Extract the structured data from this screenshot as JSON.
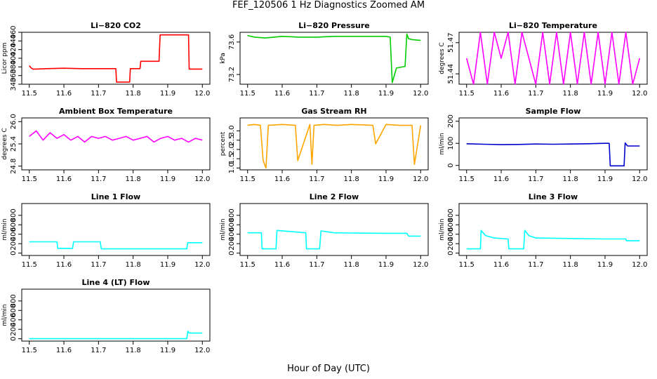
{
  "figure": {
    "title": "FEF_120506  1 Hz Diagnostics Zoomed AM",
    "xlabel": "Hour of Day (UTC)"
  },
  "chart_data": [
    {
      "type": "line",
      "title": "Li−820 CO2",
      "ylabel": "Licor ppm",
      "color": "#ff0000",
      "xlim": [
        11.5,
        12.0
      ],
      "ylim": [
        340,
        460
      ],
      "xticks": [
        "11.5",
        "11.6",
        "11.7",
        "11.8",
        "11.9",
        "12.0"
      ],
      "yticks": [
        "340",
        "360",
        "380",
        "400",
        "420",
        "440",
        "460"
      ],
      "x": [
        11.5,
        11.505,
        11.51,
        11.52,
        11.55,
        11.6,
        11.65,
        11.7,
        11.75,
        11.752,
        11.79,
        11.792,
        11.82,
        11.822,
        11.875,
        11.878,
        11.96,
        11.962,
        12.0
      ],
      "y": [
        383,
        378,
        375,
        375,
        376,
        377,
        376,
        376,
        376,
        345,
        345,
        376,
        376,
        393,
        393,
        454,
        454,
        375,
        375
      ]
    },
    {
      "type": "line",
      "title": "Li−820 Pressure",
      "ylabel": "kPa",
      "color": "#00cc00",
      "xlim": [
        11.5,
        12.0
      ],
      "ylim": [
        73.08,
        73.72
      ],
      "xticks": [
        "11.5",
        "11.6",
        "11.7",
        "11.8",
        "11.9",
        "12.0"
      ],
      "yticks": [
        "73.2",
        "73.6"
      ],
      "x": [
        11.5,
        11.52,
        11.55,
        11.6,
        11.65,
        11.7,
        11.75,
        11.8,
        11.85,
        11.9,
        11.912,
        11.918,
        11.93,
        11.955,
        11.96,
        11.965,
        11.975,
        12.0
      ],
      "y": [
        73.68,
        73.66,
        73.65,
        73.67,
        73.66,
        73.66,
        73.67,
        73.67,
        73.67,
        73.67,
        73.66,
        73.1,
        73.28,
        73.3,
        73.7,
        73.64,
        73.63,
        73.62
      ]
    },
    {
      "type": "line",
      "title": "Li−820 Temperature",
      "ylabel": "degrees C",
      "color": "#ff00ff",
      "xlim": [
        11.5,
        12.0
      ],
      "ylim": [
        51.43,
        51.48
      ],
      "xticks": [
        "11.5",
        "11.6",
        "11.7",
        "11.8",
        "11.9",
        "12.0"
      ],
      "yticks": [
        "51.44",
        "51.47"
      ],
      "x": [
        11.5,
        11.52,
        11.54,
        11.56,
        11.58,
        11.6,
        11.62,
        11.64,
        11.66,
        11.68,
        11.7,
        11.72,
        11.74,
        11.76,
        11.78,
        11.8,
        11.82,
        11.84,
        11.86,
        11.88,
        11.9,
        11.92,
        11.94,
        11.96,
        11.98,
        12.0
      ],
      "y": [
        51.455,
        51.43,
        51.48,
        51.43,
        51.48,
        51.455,
        51.48,
        51.43,
        51.48,
        51.455,
        51.43,
        51.48,
        51.43,
        51.48,
        51.43,
        51.48,
        51.43,
        51.48,
        51.43,
        51.48,
        51.43,
        51.48,
        51.43,
        51.48,
        51.43,
        51.455
      ]
    },
    {
      "type": "line",
      "title": "Ambient Box Temperature",
      "ylabel": "degrees C",
      "color": "#ff00ff",
      "xlim": [
        11.5,
        12.0
      ],
      "ylim": [
        24.7,
        26.1
      ],
      "xticks": [
        "11.5",
        "11.6",
        "11.7",
        "11.8",
        "11.9",
        "12.0"
      ],
      "yticks": [
        "24.8",
        "25.4",
        "26.0"
      ],
      "x": [
        11.5,
        11.52,
        11.54,
        11.56,
        11.58,
        11.6,
        11.62,
        11.64,
        11.66,
        11.68,
        11.7,
        11.72,
        11.74,
        11.76,
        11.78,
        11.8,
        11.82,
        11.84,
        11.86,
        11.88,
        11.9,
        11.92,
        11.94,
        11.96,
        11.98,
        12.0
      ],
      "y": [
        25.6,
        25.75,
        25.5,
        25.7,
        25.55,
        25.65,
        25.5,
        25.6,
        25.45,
        25.6,
        25.55,
        25.6,
        25.5,
        25.55,
        25.6,
        25.5,
        25.55,
        25.6,
        25.45,
        25.55,
        25.6,
        25.5,
        25.55,
        25.45,
        25.55,
        25.5
      ]
    },
    {
      "type": "line",
      "title": "Gas Stream RH",
      "ylabel": "percent",
      "color": "#ffa500",
      "xlim": [
        11.5,
        12.0
      ],
      "ylim": [
        0.9,
        3.7
      ],
      "xticks": [
        "11.5",
        "11.6",
        "11.7",
        "11.8",
        "11.9",
        "12.0"
      ],
      "yticks": [
        "1.0",
        "1.5",
        "2.0",
        "2.5",
        "3.0"
      ],
      "x": [
        11.5,
        11.52,
        11.537,
        11.545,
        11.553,
        11.56,
        11.6,
        11.638,
        11.645,
        11.68,
        11.686,
        11.692,
        11.72,
        11.76,
        11.8,
        11.862,
        11.87,
        11.9,
        11.94,
        11.975,
        11.982,
        12.0
      ],
      "y": [
        3.3,
        3.35,
        3.3,
        1.4,
        1.0,
        3.3,
        3.35,
        3.3,
        1.4,
        3.35,
        1.2,
        3.3,
        3.35,
        3.3,
        3.35,
        3.3,
        2.3,
        3.35,
        3.3,
        3.3,
        1.2,
        3.3
      ]
    },
    {
      "type": "line",
      "title": "Sample Flow",
      "ylabel": "ml/min",
      "color": "#0000cc",
      "xlim": [
        11.5,
        12.0
      ],
      "ylim": [
        -20,
        215
      ],
      "xticks": [
        "11.5",
        "11.6",
        "11.7",
        "11.8",
        "11.9",
        "12.0"
      ],
      "yticks": [
        "0",
        "100",
        "200"
      ],
      "x": [
        11.5,
        11.55,
        11.6,
        11.65,
        11.7,
        11.75,
        11.8,
        11.85,
        11.9,
        11.912,
        11.915,
        11.955,
        11.958,
        11.965,
        12.0
      ],
      "y": [
        98,
        96,
        94,
        95,
        97,
        96,
        97,
        98,
        100,
        100,
        -2,
        -2,
        102,
        88,
        88
      ]
    },
    {
      "type": "line",
      "title": "Line 1 Flow",
      "ylabel": "ml/min",
      "color": "#00ffff",
      "xlim": [
        11.5,
        12.0
      ],
      "ylim": [
        -50,
        1050
      ],
      "xticks": [
        "11.5",
        "11.6",
        "11.7",
        "11.8",
        "11.9",
        "12.0"
      ],
      "yticks": [
        "0",
        "200",
        "400",
        "600",
        "800"
      ],
      "x": [
        11.5,
        11.58,
        11.582,
        11.625,
        11.628,
        11.705,
        11.708,
        11.955,
        11.958,
        12.0
      ],
      "y": [
        240,
        240,
        100,
        100,
        240,
        240,
        90,
        90,
        220,
        220
      ]
    },
    {
      "type": "line",
      "title": "Line 2 Flow",
      "ylabel": "ml/min",
      "color": "#00ffff",
      "xlim": [
        11.5,
        12.0
      ],
      "ylim": [
        -50,
        1050
      ],
      "xticks": [
        "11.5",
        "11.6",
        "11.7",
        "11.8",
        "11.9",
        "12.0"
      ],
      "yticks": [
        "0",
        "200",
        "400",
        "600",
        "800"
      ],
      "x": [
        11.5,
        11.54,
        11.542,
        11.582,
        11.585,
        11.668,
        11.67,
        11.708,
        11.712,
        11.75,
        11.8,
        11.9,
        11.96,
        11.965,
        12.0
      ],
      "y": [
        430,
        430,
        90,
        90,
        480,
        430,
        90,
        90,
        470,
        430,
        425,
        420,
        420,
        360,
        360
      ]
    },
    {
      "type": "line",
      "title": "Line 3 Flow",
      "ylabel": "ml/min",
      "color": "#00ffff",
      "xlim": [
        11.5,
        12.0
      ],
      "ylim": [
        -50,
        1050
      ],
      "xticks": [
        "11.5",
        "11.6",
        "11.7",
        "11.8",
        "11.9",
        "12.0"
      ],
      "yticks": [
        "0",
        "200",
        "400",
        "600",
        "800"
      ],
      "x": [
        11.5,
        11.54,
        11.542,
        11.555,
        11.58,
        11.62,
        11.622,
        11.665,
        11.668,
        11.68,
        11.7,
        11.8,
        11.9,
        11.96,
        11.962,
        12.0
      ],
      "y": [
        90,
        90,
        480,
        370,
        320,
        300,
        90,
        90,
        480,
        370,
        320,
        310,
        300,
        300,
        260,
        260
      ]
    },
    {
      "type": "line",
      "title": "Line 4 (LT) Flow",
      "ylabel": "ml/min",
      "color": "#00ffff",
      "xlim": [
        11.5,
        12.0
      ],
      "ylim": [
        -50,
        1050
      ],
      "xticks": [
        "11.5",
        "11.6",
        "11.7",
        "11.8",
        "11.9",
        "12.0"
      ],
      "yticks": [
        "0",
        "200",
        "400",
        "600",
        "800"
      ],
      "x": [
        11.5,
        11.6,
        11.7,
        11.8,
        11.9,
        11.955,
        11.958,
        11.962,
        12.0
      ],
      "y": [
        0,
        0,
        0,
        0,
        0,
        0,
        160,
        120,
        120
      ]
    }
  ]
}
